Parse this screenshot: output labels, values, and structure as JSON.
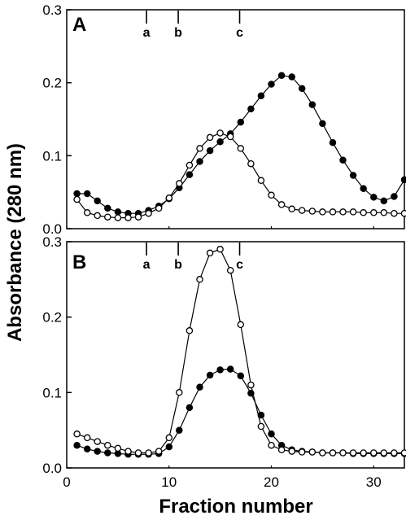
{
  "chart_data": [
    {
      "type": "line",
      "panel": "A",
      "xlabel": "Fraction number",
      "ylabel": "Absorbance (280 nm)",
      "xlim": [
        0,
        33
      ],
      "ylim": [
        0,
        0.3
      ],
      "xticks": [
        0,
        10,
        20,
        30
      ],
      "yticks": [
        0.0,
        0.1,
        0.2,
        0.3
      ],
      "ytick_labels": [
        "0.0",
        "0.1",
        "0.2",
        "0.3"
      ],
      "markers": [
        {
          "label": "a",
          "x": 7.8
        },
        {
          "label": "b",
          "x": 10.9
        },
        {
          "label": "c",
          "x": 16.9
        }
      ],
      "series": [
        {
          "marker": "filled-circle",
          "x": [
            1,
            2,
            3,
            4,
            5,
            6,
            7,
            8,
            9,
            10,
            11,
            12,
            13,
            14,
            15,
            16,
            17,
            18,
            19,
            20,
            21,
            22,
            23,
            24,
            25,
            26,
            27,
            28,
            29,
            30,
            31,
            32,
            33
          ],
          "y": [
            0.048,
            0.048,
            0.038,
            0.028,
            0.023,
            0.021,
            0.021,
            0.025,
            0.031,
            0.041,
            0.056,
            0.074,
            0.092,
            0.107,
            0.119,
            0.13,
            0.146,
            0.164,
            0.182,
            0.198,
            0.21,
            0.208,
            0.192,
            0.17,
            0.144,
            0.118,
            0.094,
            0.073,
            0.055,
            0.043,
            0.038,
            0.044,
            0.067
          ]
        },
        {
          "marker": "open-circle",
          "x": [
            1,
            2,
            3,
            4,
            5,
            6,
            7,
            8,
            9,
            10,
            11,
            12,
            13,
            14,
            15,
            16,
            17,
            18,
            19,
            20,
            21,
            22,
            23,
            24,
            25,
            26,
            27,
            28,
            29,
            30,
            31,
            32,
            33
          ],
          "y": [
            0.04,
            0.022,
            0.018,
            0.016,
            0.015,
            0.015,
            0.016,
            0.021,
            0.028,
            0.042,
            0.062,
            0.087,
            0.11,
            0.125,
            0.131,
            0.126,
            0.11,
            0.089,
            0.066,
            0.046,
            0.033,
            0.027,
            0.025,
            0.024,
            0.023,
            0.023,
            0.023,
            0.023,
            0.022,
            0.022,
            0.022,
            0.021,
            0.021
          ]
        }
      ]
    },
    {
      "type": "line",
      "panel": "B",
      "xlabel": "Fraction number",
      "ylabel": "Absorbance (280 nm)",
      "xlim": [
        0,
        33
      ],
      "ylim": [
        0,
        0.3
      ],
      "xticks": [
        0,
        10,
        20,
        30
      ],
      "yticks": [
        0.0,
        0.1,
        0.2,
        0.3
      ],
      "ytick_labels": [
        "0.0",
        "0.1",
        "0.2",
        "0.3"
      ],
      "markers": [
        {
          "label": "a",
          "x": 7.8
        },
        {
          "label": "b",
          "x": 10.9
        },
        {
          "label": "c",
          "x": 16.9
        }
      ],
      "series": [
        {
          "marker": "filled-circle",
          "x": [
            1,
            2,
            3,
            4,
            5,
            6,
            7,
            8,
            9,
            10,
            11,
            12,
            13,
            14,
            15,
            16,
            17,
            18,
            19,
            20,
            21,
            22,
            23,
            24,
            25,
            26,
            27,
            28,
            29,
            30,
            31,
            32,
            33
          ],
          "y": [
            0.03,
            0.025,
            0.022,
            0.02,
            0.019,
            0.018,
            0.018,
            0.018,
            0.019,
            0.028,
            0.05,
            0.08,
            0.107,
            0.123,
            0.13,
            0.131,
            0.122,
            0.099,
            0.07,
            0.045,
            0.03,
            0.024,
            0.022,
            0.021,
            0.02,
            0.02,
            0.02,
            0.019,
            0.019,
            0.019,
            0.019,
            0.019,
            0.019
          ]
        },
        {
          "marker": "open-circle",
          "x": [
            1,
            2,
            3,
            4,
            5,
            6,
            7,
            8,
            9,
            10,
            11,
            12,
            13,
            14,
            15,
            16,
            17,
            18,
            19,
            20,
            21,
            22,
            23,
            24,
            25,
            26,
            27,
            28,
            29,
            30,
            31,
            32,
            33
          ],
          "y": [
            0.045,
            0.04,
            0.035,
            0.03,
            0.026,
            0.022,
            0.02,
            0.02,
            0.022,
            0.04,
            0.1,
            0.182,
            0.25,
            0.285,
            0.29,
            0.262,
            0.19,
            0.11,
            0.055,
            0.03,
            0.024,
            0.022,
            0.021,
            0.021,
            0.02,
            0.02,
            0.02,
            0.02,
            0.02,
            0.02,
            0.02,
            0.02,
            0.02
          ]
        }
      ]
    }
  ]
}
